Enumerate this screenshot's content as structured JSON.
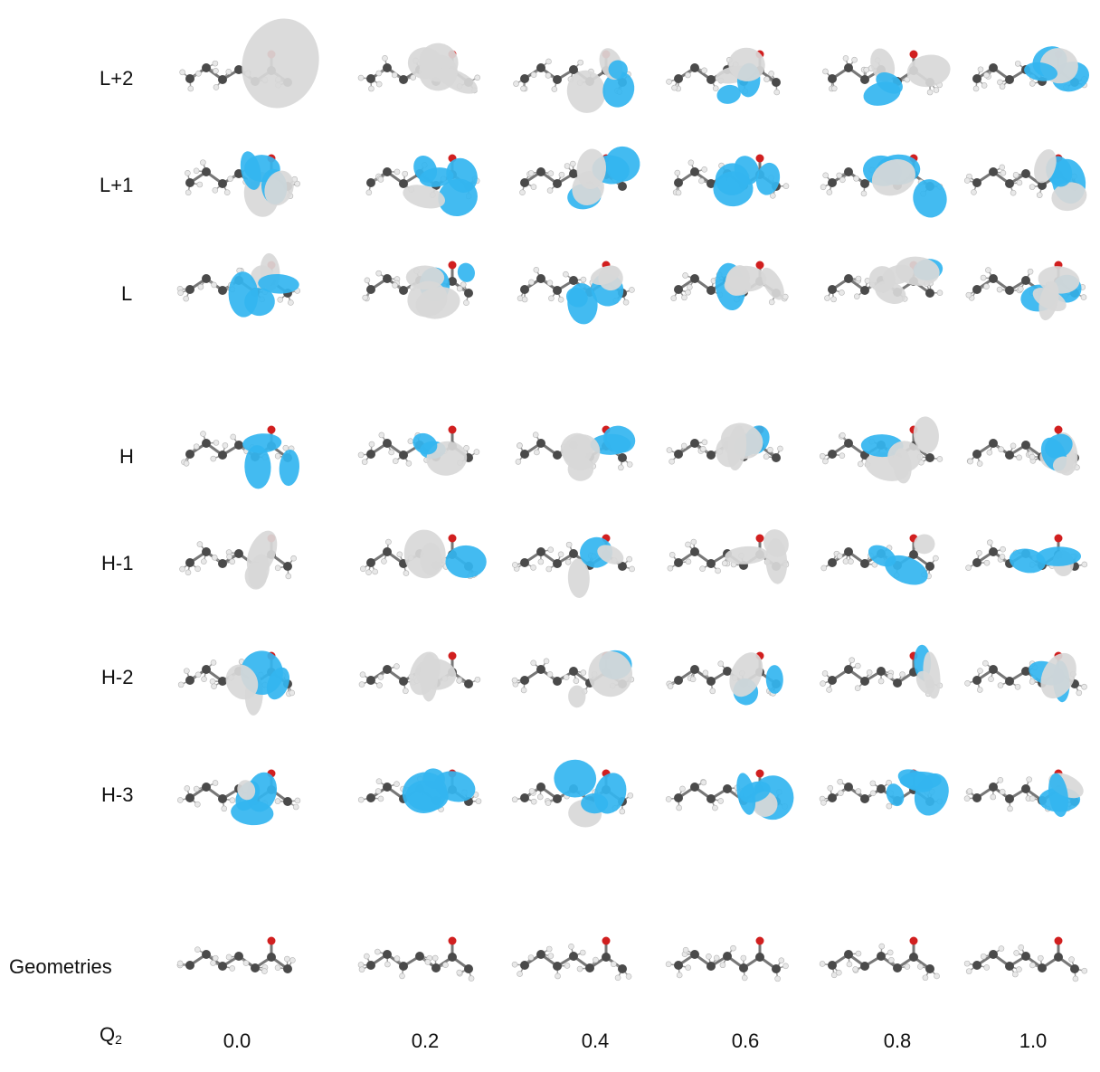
{
  "figure": {
    "row_labels": [
      "L+2",
      "L+1",
      "L",
      "H",
      "H-1",
      "H-2",
      "H-3",
      "Geometries"
    ],
    "axis_symbol": "Q",
    "axis_subscript": "2",
    "columns": [
      "0.0",
      "0.2",
      "0.4",
      "0.6",
      "0.8",
      "1.0"
    ],
    "colors": {
      "positive_lobe": "#33b5f0",
      "negative_lobe": "#d8d8d8",
      "carbon_atom": "#4a4a4a",
      "hydrogen_atom": "#e8e8e8",
      "oxygen_atom": "#d11f1f",
      "bond": "#777777"
    }
  }
}
